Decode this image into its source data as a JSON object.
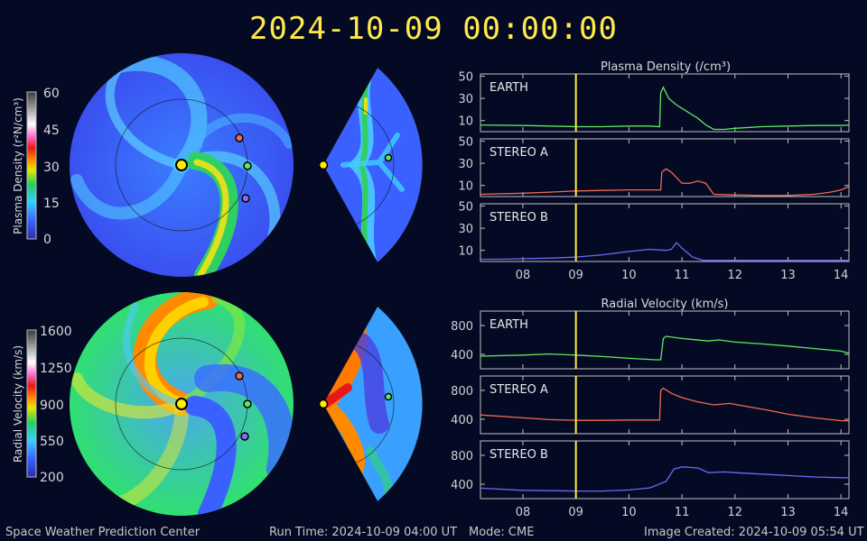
{
  "header": {
    "timestamp": "2024-10-09 00:00:00"
  },
  "footer": {
    "left": "Space Weather Prediction Center",
    "run_time": "Run Time: 2024-10-09 04:00 UT",
    "mode": "Mode: CME",
    "image_created": "Image Created: 2024-10-09 05:54 UT"
  },
  "colors": {
    "background": "#050a24",
    "earth": "#5fe85f",
    "stereo_a": "#f06a50",
    "stereo_b": "#6a6af5",
    "time_marker": "#ffe94a"
  },
  "colorbars": {
    "density": {
      "label": "Plasma Density (r²N/cm³)",
      "ticks": [
        "60",
        "45",
        "30",
        "15",
        "0"
      ]
    },
    "velocity": {
      "label": "Radial Velocity (km/s)",
      "ticks": [
        "1600",
        "1250",
        "900",
        "550",
        "200"
      ]
    }
  },
  "chart_data": [
    {
      "type": "line",
      "title": "Plasma Density (/cm³)",
      "x_ticks": [
        "08",
        "09",
        "10",
        "11",
        "12",
        "13",
        "14"
      ],
      "xlim": [
        7.2,
        14.15
      ],
      "current_time_x": 9.0,
      "panels": [
        {
          "name": "EARTH",
          "yticks": [
            10,
            30,
            50
          ],
          "ylim": [
            0,
            52
          ],
          "color": "#5fe85f",
          "x": [
            7.2,
            8.0,
            8.5,
            9.0,
            9.5,
            10.0,
            10.4,
            10.58,
            10.6,
            10.65,
            10.75,
            10.9,
            11.1,
            11.3,
            11.45,
            11.6,
            11.8,
            12.0,
            12.5,
            13.0,
            13.5,
            14.0,
            14.15
          ],
          "y": [
            6,
            5.5,
            5,
            4.5,
            4.5,
            5,
            5,
            4.5,
            35,
            40,
            30,
            24,
            18,
            12,
            6,
            2,
            2,
            3,
            4.5,
            5,
            5.5,
            5.5,
            6
          ]
        },
        {
          "name": "STEREO A",
          "yticks": [
            10,
            30,
            50
          ],
          "ylim": [
            0,
            52
          ],
          "color": "#f06a50",
          "x": [
            7.2,
            8.0,
            8.5,
            9.0,
            9.5,
            10.0,
            10.5,
            10.6,
            10.62,
            10.7,
            10.8,
            10.9,
            11.0,
            11.15,
            11.3,
            11.45,
            11.6,
            12.0,
            12.5,
            13.0,
            13.5,
            13.8,
            14.0,
            14.15
          ],
          "y": [
            2,
            3,
            4,
            5,
            5.5,
            6,
            6,
            6,
            22,
            25,
            22,
            17,
            12,
            12,
            14,
            12,
            2,
            1.5,
            1,
            1,
            2,
            4,
            6,
            9
          ]
        },
        {
          "name": "STEREO B",
          "yticks": [
            10,
            30,
            50
          ],
          "ylim": [
            0,
            52
          ],
          "color": "#6a6af5",
          "x": [
            7.2,
            7.6,
            8.0,
            8.5,
            9.0,
            9.5,
            10.0,
            10.4,
            10.7,
            10.8,
            10.9,
            11.0,
            11.2,
            11.4,
            11.7,
            12.0,
            12.5,
            13.0,
            13.5,
            14.0,
            14.15
          ],
          "y": [
            2,
            2,
            2.5,
            3,
            4,
            6,
            9,
            11,
            10,
            11,
            17,
            12,
            4,
            1,
            1,
            1,
            1,
            1,
            1,
            1,
            1
          ]
        }
      ]
    },
    {
      "type": "line",
      "title": "Radial Velocity (km/s)",
      "x_ticks": [
        "08",
        "09",
        "10",
        "11",
        "12",
        "13",
        "14"
      ],
      "xlim": [
        7.2,
        14.15
      ],
      "current_time_x": 9.0,
      "panels": [
        {
          "name": "EARTH",
          "yticks": [
            400,
            800
          ],
          "ylim": [
            200,
            1000
          ],
          "color": "#5fe85f",
          "x": [
            7.2,
            8.0,
            8.5,
            9.0,
            9.5,
            10.0,
            10.5,
            10.6,
            10.65,
            10.7,
            11.0,
            11.5,
            11.7,
            12.0,
            12.5,
            13.0,
            13.5,
            14.0,
            14.15
          ],
          "y": [
            375,
            390,
            405,
            390,
            370,
            345,
            325,
            325,
            620,
            650,
            620,
            585,
            600,
            570,
            545,
            515,
            480,
            445,
            415
          ]
        },
        {
          "name": "STEREO A",
          "yticks": [
            400,
            800
          ],
          "ylim": [
            200,
            1000
          ],
          "color": "#f06a50",
          "x": [
            7.2,
            8.0,
            8.5,
            9.0,
            9.5,
            10.0,
            10.58,
            10.6,
            10.65,
            10.8,
            11.0,
            11.3,
            11.6,
            11.9,
            12.2,
            12.6,
            13.0,
            13.5,
            14.0,
            14.15
          ],
          "y": [
            460,
            420,
            395,
            385,
            385,
            390,
            390,
            800,
            830,
            760,
            700,
            640,
            600,
            620,
            580,
            530,
            470,
            420,
            380,
            380
          ]
        },
        {
          "name": "STEREO B",
          "yticks": [
            400,
            800
          ],
          "ylim": [
            200,
            1000
          ],
          "color": "#6a6af5",
          "x": [
            7.2,
            8.0,
            8.5,
            9.0,
            9.5,
            10.0,
            10.4,
            10.7,
            10.85,
            11.0,
            11.3,
            11.5,
            11.8,
            12.0,
            12.5,
            13.0,
            13.5,
            14.0,
            14.15
          ],
          "y": [
            345,
            315,
            310,
            305,
            305,
            320,
            350,
            440,
            610,
            640,
            625,
            560,
            570,
            560,
            540,
            520,
            500,
            490,
            490
          ]
        }
      ]
    }
  ]
}
